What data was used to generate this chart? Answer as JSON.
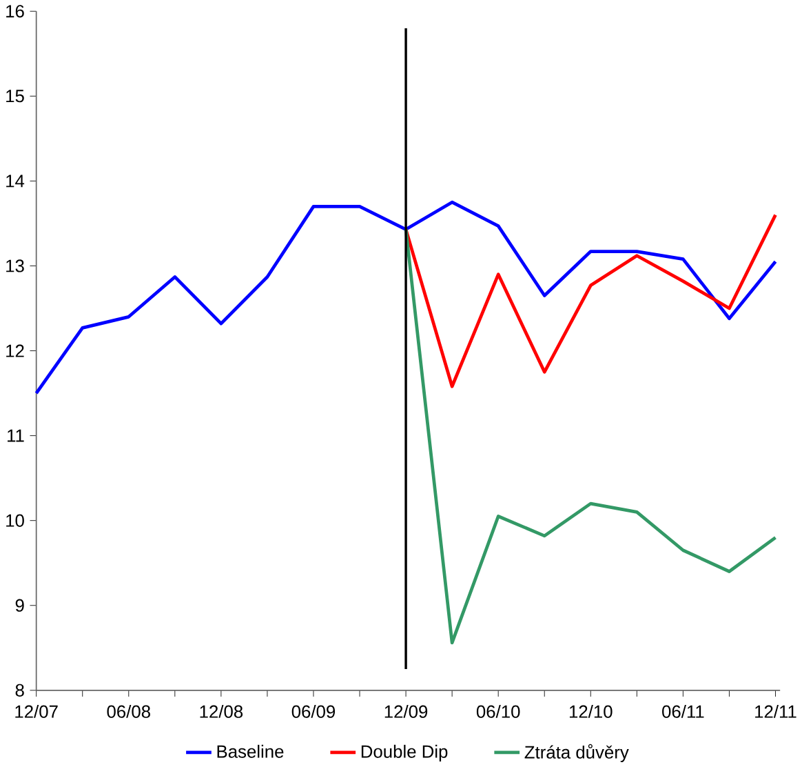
{
  "chart_data": {
    "type": "line",
    "categories": [
      "12/07",
      null,
      "06/08",
      null,
      "12/08",
      null,
      "06/09",
      null,
      "12/09",
      null,
      "06/10",
      null,
      "12/10",
      null,
      "06/11",
      null,
      "12/11"
    ],
    "series": [
      {
        "name": "Baseline",
        "color": "#0000ff",
        "values": [
          11.5,
          12.27,
          12.4,
          12.87,
          12.32,
          12.87,
          13.7,
          13.7,
          13.43,
          13.75,
          13.47,
          12.65,
          13.17,
          13.17,
          13.08,
          12.38,
          13.05
        ]
      },
      {
        "name": "Double Dip",
        "color": "#ff0000",
        "values": [
          null,
          null,
          null,
          null,
          null,
          null,
          null,
          null,
          13.43,
          11.58,
          12.9,
          11.75,
          12.77,
          13.12,
          12.82,
          12.5,
          13.6
        ]
      },
      {
        "name": "Ztráta důvěry",
        "color": "#339966",
        "values": [
          null,
          null,
          null,
          null,
          null,
          null,
          null,
          null,
          13.43,
          8.56,
          10.05,
          9.82,
          10.2,
          10.1,
          9.65,
          9.4,
          9.8
        ]
      }
    ],
    "ylim": [
      8,
      16
    ],
    "yticks": [
      8,
      9,
      10,
      11,
      12,
      13,
      14,
      15,
      16
    ],
    "ref_lines": [
      {
        "axis": "x",
        "value": "12/09",
        "color": "#000000"
      }
    ],
    "legend": "bottom",
    "grid": false,
    "marker": "none",
    "line_style": "solid"
  }
}
